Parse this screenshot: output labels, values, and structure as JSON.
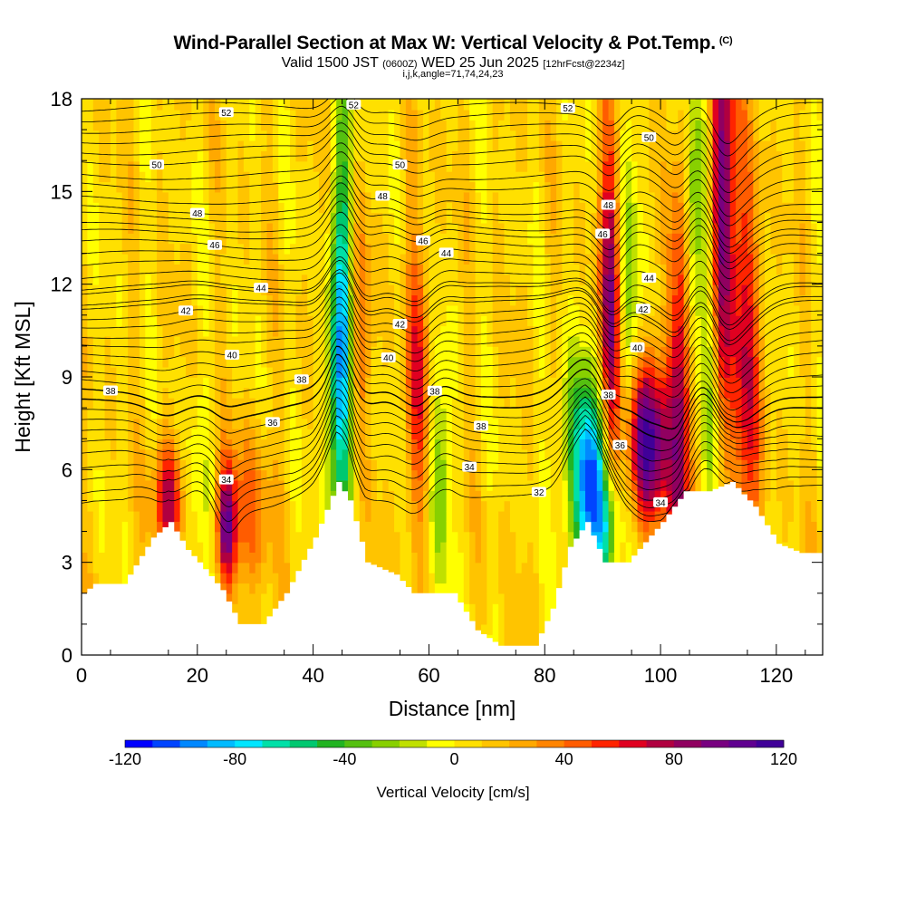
{
  "chart_data": {
    "type": "heatmap",
    "title": "Wind-Parallel Section at Max W: Vertical Velocity & Pot.Temp.",
    "title_mark": "(C)",
    "subtitle_valid": "Valid 1500 JST",
    "subtitle_utc": "(0600Z)",
    "subtitle_date": "WED 25 Jun 2025",
    "subtitle_fcst": "[12hrFcst@2234z]",
    "subtitle_indices": "i,j,k,angle=71,74,24,23",
    "xlabel": "Distance [nm]",
    "ylabel": "Height [Kft MSL]",
    "xlim": [
      0,
      128
    ],
    "ylim": [
      0,
      18
    ],
    "xticks": [
      0,
      20,
      40,
      60,
      80,
      100,
      120
    ],
    "yticks": [
      0,
      3,
      6,
      9,
      12,
      15,
      18
    ],
    "colorbar": {
      "label": "Vertical Velocity [cm/s]",
      "range": [
        -120,
        120
      ],
      "step": 10,
      "tick_values": [
        -120,
        -80,
        -40,
        0,
        40,
        80,
        120
      ],
      "colors": [
        "#0000ff",
        "#0044ff",
        "#0088ff",
        "#00bbff",
        "#00e6ff",
        "#00e0a8",
        "#00c870",
        "#22b422",
        "#55c010",
        "#88d000",
        "#c0e000",
        "#ffff00",
        "#ffe000",
        "#ffc400",
        "#ffa800",
        "#ff8400",
        "#ff5c00",
        "#ff2400",
        "#e00020",
        "#b00040",
        "#900060",
        "#780080",
        "#600090",
        "#400098"
      ]
    },
    "terrain_profile": {
      "x": [
        0,
        2,
        7,
        12,
        15,
        18,
        20,
        24,
        27,
        31,
        35,
        40,
        44,
        46,
        49,
        54,
        57,
        60,
        64,
        68,
        72,
        78,
        81,
        84,
        87,
        90,
        94,
        100,
        104,
        108,
        112,
        116,
        120,
        124,
        128
      ],
      "y": [
        2.0,
        2.3,
        2.3,
        3.8,
        4.3,
        3.4,
        3.0,
        2.1,
        1.0,
        1.0,
        2.0,
        3.8,
        5.6,
        5.0,
        3.0,
        2.6,
        2.0,
        2.0,
        2.0,
        0.8,
        0.3,
        0.3,
        1.5,
        3.5,
        4.3,
        3.0,
        3.0,
        4.3,
        5.3,
        5.3,
        5.6,
        4.8,
        3.6,
        3.3,
        3.3
      ]
    },
    "vertical_velocity_features": [
      {
        "x_center": 15,
        "x_width": 1.8,
        "y_center": 5.0,
        "y_width": 1.4,
        "w": 70
      },
      {
        "x_center": 25,
        "x_width": 1.2,
        "y_center": 4.2,
        "y_width": 1.3,
        "w": 85
      },
      {
        "x_center": 29,
        "x_width": 2.5,
        "y_center": 4.5,
        "y_width": 2.0,
        "w": 35
      },
      {
        "x_center": 19,
        "x_width": 2.0,
        "y_center": 5.5,
        "y_width": 2.5,
        "w": -15
      },
      {
        "x_center": 44.5,
        "x_width": 1.4,
        "y_center": 8.5,
        "y_width": 3.5,
        "w": -85
      },
      {
        "x_center": 45.5,
        "x_width": 1.2,
        "y_center": 14.0,
        "y_width": 4.5,
        "w": -45
      },
      {
        "x_center": 47.5,
        "x_width": 1.6,
        "y_center": 10.5,
        "y_width": 2.5,
        "w": 35
      },
      {
        "x_center": 58,
        "x_width": 1.6,
        "y_center": 9.0,
        "y_width": 3.5,
        "w": 45
      },
      {
        "x_center": 62,
        "x_width": 1.4,
        "y_center": 6.0,
        "y_width": 2.5,
        "w": -35
      },
      {
        "x_center": 88,
        "x_width": 2.0,
        "y_center": 5.0,
        "y_width": 2.0,
        "w": -95
      },
      {
        "x_center": 86,
        "x_width": 2.5,
        "y_center": 7.0,
        "y_width": 2.0,
        "w": -45
      },
      {
        "x_center": 91.5,
        "x_width": 1.4,
        "y_center": 11.5,
        "y_width": 4.5,
        "w": 85
      },
      {
        "x_center": 91,
        "x_width": 1.5,
        "y_center": 4.0,
        "y_width": 1.5,
        "w": -55
      },
      {
        "x_center": 97.5,
        "x_width": 2.5,
        "y_center": 6.8,
        "y_width": 1.8,
        "w": 115
      },
      {
        "x_center": 94,
        "x_width": 1.8,
        "y_center": 11.0,
        "y_width": 5.0,
        "w": -35
      },
      {
        "x_center": 103.5,
        "x_width": 1.4,
        "y_center": 8.5,
        "y_width": 5.5,
        "w": 85
      },
      {
        "x_center": 105.5,
        "x_width": 1.4,
        "y_center": 14.0,
        "y_width": 3.5,
        "w": -55
      },
      {
        "x_center": 110.5,
        "x_width": 1.6,
        "y_center": 15.0,
        "y_width": 4.5,
        "w": 95
      },
      {
        "x_center": 114.5,
        "x_width": 2.0,
        "y_center": 9.0,
        "y_width": 5.0,
        "w": 55
      },
      {
        "x_center": 108.5,
        "x_width": 1.2,
        "y_center": 10.0,
        "y_width": 6.0,
        "w": -40
      }
    ],
    "theta_contours": [
      {
        "value": 32,
        "label": "32",
        "label_x": 79,
        "base_y": 5.0
      },
      {
        "value": 34,
        "label": "34",
        "label_x": 25,
        "base_y": 6.5
      },
      {
        "value": 34,
        "label": "34",
        "label_x": 67,
        "base_y": 5.9
      },
      {
        "value": 34,
        "label": "34",
        "label_x": 100,
        "base_y": 5.9
      },
      {
        "value": 36,
        "label": "36",
        "label_x": 33,
        "base_y": 7.8
      },
      {
        "value": 36,
        "label": "36",
        "label_x": 93,
        "base_y": 7.3
      },
      {
        "value": 38,
        "label": "38",
        "label_x": 5,
        "base_y": 8.5
      },
      {
        "value": 38,
        "label": "38",
        "label_x": 38,
        "base_y": 8.8
      },
      {
        "value": 38,
        "label": "38",
        "label_x": 61,
        "base_y": 8.5
      },
      {
        "value": 38,
        "label": "38",
        "label_x": 69,
        "base_y": 7.4
      },
      {
        "value": 38,
        "label": "38",
        "label_x": 91,
        "base_y": 8.5
      },
      {
        "value": 40,
        "label": "40",
        "label_x": 26,
        "base_y": 9.8
      },
      {
        "value": 40,
        "label": "40",
        "label_x": 53,
        "base_y": 9.8
      },
      {
        "value": 40,
        "label": "40",
        "label_x": 96,
        "base_y": 10.4
      },
      {
        "value": 42,
        "label": "42",
        "label_x": 18,
        "base_y": 11.0
      },
      {
        "value": 42,
        "label": "42",
        "label_x": 55,
        "base_y": 11.1
      },
      {
        "value": 42,
        "label": "42",
        "label_x": 97,
        "base_y": 11.6
      },
      {
        "value": 44,
        "label": "44",
        "label_x": 31,
        "base_y": 11.9
      },
      {
        "value": 44,
        "label": "44",
        "label_x": 63,
        "base_y": 12.8
      },
      {
        "value": 44,
        "label": "44",
        "label_x": 98,
        "base_y": 12.5
      },
      {
        "value": 46,
        "label": "46",
        "label_x": 23,
        "base_y": 13.3
      },
      {
        "value": 46,
        "label": "46",
        "label_x": 59,
        "base_y": 13.6
      },
      {
        "value": 46,
        "label": "46",
        "label_x": 90,
        "base_y": 14.2
      },
      {
        "value": 48,
        "label": "48",
        "label_x": 20,
        "base_y": 14.4
      },
      {
        "value": 48,
        "label": "48",
        "label_x": 52,
        "base_y": 14.8
      },
      {
        "value": 48,
        "label": "48",
        "label_x": 91,
        "base_y": 15.1
      },
      {
        "value": 50,
        "label": "50",
        "label_x": 13,
        "base_y": 16.0
      },
      {
        "value": 50,
        "label": "50",
        "label_x": 55,
        "base_y": 16.1
      },
      {
        "value": 50,
        "label": "50",
        "label_x": 98,
        "base_y": 16.7
      },
      {
        "value": 52,
        "label": "52",
        "label_x": 25,
        "base_y": 17.4
      },
      {
        "value": 52,
        "label": "52",
        "label_x": 47,
        "base_y": 17.5
      },
      {
        "value": 52,
        "label": "52",
        "label_x": 84,
        "base_y": 17.6
      }
    ]
  }
}
